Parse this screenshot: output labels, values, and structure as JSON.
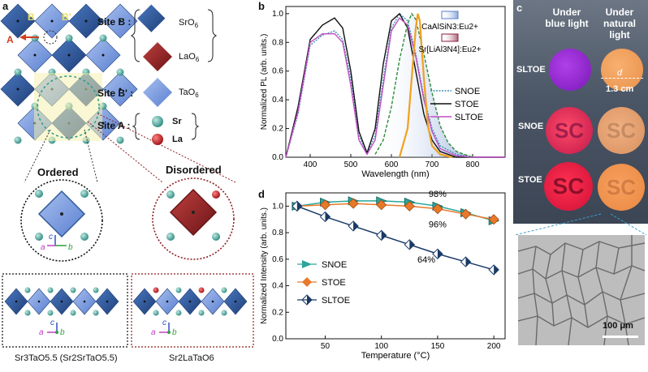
{
  "panel_a": {
    "label": "a",
    "site_b": {
      "title": "Site B :",
      "items": [
        "SrO",
        "LaO"
      ],
      "sub": "6"
    },
    "site_b2": {
      "title": "Site B' :",
      "item": "TaO",
      "sub": "6"
    },
    "site_a": {
      "title": "Site A :",
      "items": [
        "Sr",
        "La"
      ]
    },
    "lattice_labels": {
      "B": "B",
      "B2": "B'",
      "A": "A"
    },
    "ordered": "Ordered",
    "disordered": "Disordered",
    "axes": {
      "c": "c",
      "a": "a",
      "b": "b"
    },
    "formula_left": "Sr3TaO5.5 (Sr2SrTaO5.5)",
    "formula_right": "Sr2LaTaO6",
    "colors": {
      "sro6": "#2f5c9a",
      "lao6": "#8e1f22",
      "tao6": "#6b8fd8",
      "sr": "#3a9a8f",
      "la": "#b0161c"
    }
  },
  "panel_b": {
    "label": "b",
    "ylabel": "Normalized PL (arb. units.)",
    "xlabel": "Wavelength (nm)",
    "refs": [
      "CaAlSiN3:Eu2+",
      "Sr[LiAl3N4]:Eu2+"
    ],
    "legend": [
      "SNOE",
      "STOE",
      "SLTOE"
    ]
  },
  "panel_c": {
    "label": "c",
    "col1": "Under blue light",
    "col2": "Under natural light",
    "rows": [
      "SLTOE",
      "SNOE",
      "STOE"
    ],
    "d_label": "d",
    "size_label": "1.3 cm",
    "disc_text": "SC",
    "scale": "100 μm"
  },
  "panel_d": {
    "label": "d",
    "ylabel": "Normalized Intensity (arb. units.)",
    "xlabel": "Temperature (°C)",
    "legend": [
      "SNOE",
      "STOE",
      "SLTOE"
    ],
    "annotations": [
      "98%",
      "96%",
      "64%"
    ]
  },
  "chart_data": [
    {
      "type": "line",
      "title": "",
      "xlabel": "Wavelength (nm)",
      "ylabel": "Normalized PL (arb. units.)",
      "xlim": [
        340,
        880
      ],
      "ylim": [
        0,
        1.05
      ],
      "xticks": [
        400,
        500,
        600,
        700,
        800
      ],
      "yticks": [
        0.0,
        0.2,
        0.4,
        0.6,
        0.8,
        1.0
      ],
      "series": [
        {
          "name": "SNOE",
          "style": "dotted",
          "color": "#3a8fb0",
          "x": [
            340,
            370,
            400,
            430,
            460,
            480,
            500,
            520,
            540,
            560,
            580,
            600,
            620,
            640,
            660,
            680,
            700,
            720,
            760,
            800,
            880
          ],
          "y": [
            0.0,
            0.3,
            0.78,
            0.85,
            0.88,
            0.82,
            0.55,
            0.15,
            0.03,
            0.15,
            0.55,
            0.9,
            1.0,
            0.95,
            0.72,
            0.42,
            0.2,
            0.08,
            0.02,
            0.0,
            0.0
          ]
        },
        {
          "name": "STOE",
          "style": "solid",
          "color": "#111111",
          "x": [
            340,
            370,
            400,
            430,
            460,
            480,
            500,
            520,
            540,
            560,
            580,
            600,
            620,
            640,
            660,
            680,
            700,
            720,
            760,
            800,
            880
          ],
          "y": [
            0.0,
            0.35,
            0.82,
            0.92,
            0.97,
            0.9,
            0.6,
            0.18,
            0.03,
            0.2,
            0.65,
            0.95,
            1.0,
            0.9,
            0.6,
            0.3,
            0.12,
            0.04,
            0.0,
            0.0,
            0.0
          ]
        },
        {
          "name": "SLTOE",
          "style": "solid",
          "color": "#c04fc4",
          "x": [
            340,
            370,
            400,
            430,
            460,
            480,
            500,
            520,
            540,
            560,
            580,
            600,
            620,
            640,
            660,
            680,
            700,
            720,
            760,
            800,
            880
          ],
          "y": [
            0.0,
            0.32,
            0.8,
            0.86,
            0.86,
            0.8,
            0.5,
            0.12,
            0.02,
            0.12,
            0.5,
            0.88,
            0.97,
            0.92,
            0.7,
            0.4,
            0.18,
            0.06,
            0.01,
            0.0,
            0.0
          ]
        },
        {
          "name": "CaAlSiN3:Eu2+",
          "style": "dashed",
          "color": "#2f8a3a",
          "x": [
            560,
            580,
            600,
            620,
            640,
            650,
            660,
            680,
            700,
            720,
            740,
            760,
            800
          ],
          "y": [
            0.02,
            0.12,
            0.35,
            0.68,
            0.93,
            1.0,
            0.96,
            0.72,
            0.45,
            0.22,
            0.1,
            0.04,
            0.0
          ]
        },
        {
          "name": "Sr[LiAl3N4]:Eu2+",
          "style": "solid",
          "color": "#f0a020",
          "x": [
            620,
            640,
            650,
            660,
            665,
            670,
            680,
            690,
            700,
            720,
            750
          ],
          "y": [
            0.0,
            0.2,
            0.55,
            0.9,
            1.0,
            0.95,
            0.55,
            0.22,
            0.08,
            0.02,
            0.0
          ]
        }
      ]
    },
    {
      "type": "line",
      "title": "",
      "xlabel": "Temperature (°C)",
      "ylabel": "Normalized Intensity (arb. units.)",
      "xlim": [
        15,
        210
      ],
      "ylim": [
        0,
        1.1
      ],
      "xticks": [
        50,
        100,
        150,
        200
      ],
      "yticks": [
        0.0,
        0.2,
        0.4,
        0.6,
        0.8,
        1.0
      ],
      "x": [
        25,
        50,
        75,
        100,
        125,
        150,
        175,
        200
      ],
      "series": [
        {
          "name": "SNOE",
          "color": "#2aa69a",
          "values": [
            1.0,
            1.03,
            1.04,
            1.04,
            1.03,
            1.0,
            0.95,
            0.89
          ]
        },
        {
          "name": "STOE",
          "color": "#e8792a",
          "values": [
            1.0,
            1.01,
            1.02,
            1.01,
            1.0,
            0.98,
            0.94,
            0.9
          ]
        },
        {
          "name": "SLTOE",
          "color": "#1a3a66",
          "values": [
            1.0,
            0.92,
            0.85,
            0.78,
            0.71,
            0.64,
            0.58,
            0.52
          ]
        }
      ]
    }
  ]
}
